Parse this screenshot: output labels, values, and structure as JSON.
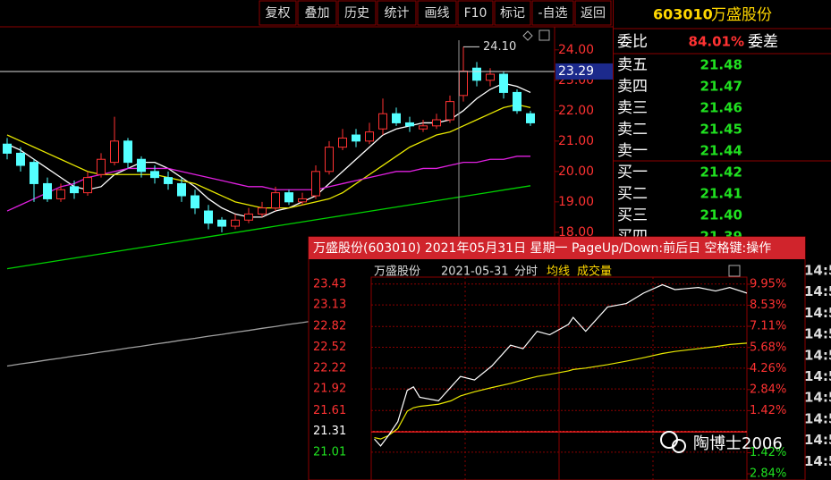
{
  "toolbar": [
    "复权",
    "叠加",
    "历史",
    "统计",
    "画线",
    "F10",
    "标记",
    "-自选",
    "返回"
  ],
  "stock": {
    "code": "603010",
    "name": "万盛股份"
  },
  "order_book": {
    "ratio_label": "委比",
    "ratio": "84.01%",
    "diff_label": "委差",
    "asks": [
      {
        "label": "卖五",
        "price": "21.48"
      },
      {
        "label": "卖四",
        "price": "21.47"
      },
      {
        "label": "卖三",
        "price": "21.46"
      },
      {
        "label": "卖二",
        "price": "21.45"
      },
      {
        "label": "卖一",
        "price": "21.44"
      }
    ],
    "bids": [
      {
        "label": "买一",
        "price": "21.42"
      },
      {
        "label": "买二",
        "price": "21.41"
      },
      {
        "label": "买三",
        "price": "21.40"
      },
      {
        "label": "买四",
        "price": "21.39"
      }
    ]
  },
  "kline": {
    "ylim": [
      9.85,
      24.7
    ],
    "yticks": [
      {
        "value": 24,
        "label": "24.00"
      },
      {
        "value": 23,
        "label": "23.00"
      },
      {
        "value": 22,
        "label": "22.00"
      },
      {
        "value": 21,
        "label": "21.00"
      },
      {
        "value": 20,
        "label": "20.00"
      },
      {
        "value": 19,
        "label": "19.00"
      },
      {
        "value": 18,
        "label": "18.00"
      }
    ],
    "current": {
      "value": 23.29,
      "label": "23.29"
    },
    "high_label": {
      "value": 24.1,
      "label": "24.10"
    },
    "open": [
      20.9,
      20.6,
      20.3,
      19.6,
      19.1,
      19.5,
      19.3,
      19.9,
      20.3,
      21.0,
      20.4,
      20.0,
      19.8,
      19.6,
      19.2,
      18.7,
      18.4,
      18.2,
      18.4,
      18.6,
      18.8,
      19.3,
      19.0,
      19.2,
      20.0,
      20.8,
      21.2,
      21.0,
      21.4,
      21.9,
      21.6,
      21.4,
      21.5,
      21.7,
      22.5,
      23.4,
      23.0,
      23.2,
      22.6,
      21.9
    ],
    "high": [
      21.1,
      20.8,
      20.4,
      19.8,
      19.6,
      19.7,
      20.0,
      20.6,
      21.8,
      21.1,
      20.5,
      20.2,
      20.0,
      19.8,
      19.4,
      18.9,
      18.5,
      18.6,
      18.8,
      19.0,
      19.5,
      19.4,
      19.3,
      20.2,
      21.0,
      21.4,
      21.4,
      21.6,
      22.4,
      22.1,
      21.8,
      21.7,
      21.9,
      22.5,
      24.1,
      23.6,
      23.4,
      23.3,
      22.7,
      22.0
    ],
    "low": [
      20.4,
      20.0,
      19.0,
      19.0,
      19.0,
      19.1,
      19.2,
      19.8,
      20.2,
      20.1,
      19.8,
      19.6,
      19.4,
      19.0,
      18.6,
      18.1,
      18.0,
      18.1,
      18.3,
      18.5,
      18.7,
      18.9,
      18.9,
      19.1,
      19.9,
      20.7,
      20.8,
      20.9,
      21.2,
      21.5,
      21.3,
      21.3,
      21.4,
      21.6,
      22.3,
      22.8,
      22.8,
      22.4,
      21.9,
      21.5
    ],
    "close": [
      20.6,
      20.2,
      19.6,
      19.1,
      19.4,
      19.3,
      19.8,
      20.4,
      21.0,
      20.3,
      20.0,
      19.8,
      19.6,
      19.2,
      18.8,
      18.3,
      18.2,
      18.4,
      18.6,
      18.8,
      19.3,
      19.0,
      19.1,
      20.0,
      20.8,
      21.1,
      21.0,
      21.3,
      21.9,
      21.6,
      21.5,
      21.5,
      21.7,
      22.3,
      23.3,
      23.0,
      23.2,
      22.6,
      22.0,
      21.6
    ],
    "up_color": "#ff3232",
    "down_color": "#54ffff",
    "ma": [
      {
        "color": "#ffffff",
        "values": [
          20.9,
          20.7,
          20.4,
          20.1,
          19.8,
          19.5,
          19.4,
          19.5,
          19.9,
          20.1,
          20.3,
          20.3,
          20.1,
          19.8,
          19.5,
          19.1,
          18.8,
          18.6,
          18.5,
          18.5,
          18.7,
          18.8,
          19.0,
          19.2,
          19.6,
          20.0,
          20.4,
          20.8,
          21.2,
          21.4,
          21.5,
          21.6,
          21.6,
          21.7,
          22.0,
          22.4,
          22.7,
          22.9,
          22.8,
          22.6
        ]
      },
      {
        "color": "#e8e800",
        "values": [
          21.2,
          21.0,
          20.8,
          20.6,
          20.4,
          20.2,
          20.0,
          19.9,
          19.9,
          19.9,
          19.9,
          19.9,
          19.8,
          19.7,
          19.6,
          19.4,
          19.2,
          19.0,
          18.9,
          18.8,
          18.8,
          18.8,
          18.9,
          19.0,
          19.1,
          19.3,
          19.6,
          19.9,
          20.2,
          20.5,
          20.8,
          21.0,
          21.2,
          21.3,
          21.5,
          21.7,
          21.9,
          22.1,
          22.2,
          22.1
        ]
      },
      {
        "color": "#e020e0",
        "values": [
          18.7,
          18.9,
          19.1,
          19.3,
          19.5,
          19.6,
          19.8,
          19.9,
          20.0,
          20.1,
          20.1,
          20.1,
          20.1,
          20.0,
          19.9,
          19.8,
          19.7,
          19.6,
          19.5,
          19.5,
          19.4,
          19.4,
          19.4,
          19.4,
          19.5,
          19.6,
          19.7,
          19.8,
          19.9,
          20.0,
          20.0,
          20.1,
          20.1,
          20.2,
          20.3,
          20.3,
          20.4,
          20.4,
          20.5,
          20.5
        ]
      },
      {
        "color": "#00d000",
        "values": [
          16.8,
          16.87,
          16.94,
          17.01,
          17.08,
          17.15,
          17.22,
          17.29,
          17.36,
          17.43,
          17.5,
          17.57,
          17.64,
          17.71,
          17.78,
          17.85,
          17.92,
          17.99,
          18.06,
          18.13,
          18.2,
          18.27,
          18.34,
          18.41,
          18.48,
          18.55,
          18.62,
          18.69,
          18.76,
          18.83,
          18.9,
          18.97,
          19.04,
          19.11,
          19.18,
          19.25,
          19.32,
          19.39,
          19.46,
          19.53
        ]
      },
      {
        "color": "#a0a0a0",
        "values": [
          13.6,
          13.67,
          13.73,
          13.8,
          13.86,
          13.93,
          13.99,
          14.06,
          14.12,
          14.19,
          14.25,
          14.32,
          14.38,
          14.45,
          14.51,
          14.58,
          14.64,
          14.71,
          14.77,
          14.84,
          14.9,
          14.97,
          15.03,
          15.1,
          15.16,
          15.23,
          15.29,
          15.36,
          15.42,
          15.49,
          15.55,
          15.62,
          15.68,
          15.75,
          15.81,
          15.88,
          15.94,
          16.01,
          16.07,
          16.14
        ]
      }
    ]
  },
  "intraday": {
    "title": "万盛股份(603010) 2021年05月31日 星期一 PageUp/Down:前后日 空格键:操作",
    "name": "万盛股份",
    "date": "2021-05-31",
    "mode": "分时",
    "avg_label": "均线",
    "volume_label": "成交量",
    "xlim": [
      0,
      240
    ],
    "ylim": [
      20.61,
      23.53
    ],
    "y2lim": [
      -3.26,
      10.43
    ],
    "yticks": [
      {
        "value": 23.43,
        "label": "23.43"
      },
      {
        "value": 23.13,
        "label": "23.13"
      },
      {
        "value": 22.82,
        "label": "22.82"
      },
      {
        "value": 22.52,
        "label": "22.52"
      },
      {
        "value": 22.22,
        "label": "22.22"
      },
      {
        "value": 21.92,
        "label": "21.92"
      },
      {
        "value": 21.61,
        "label": "21.61"
      },
      {
        "value": 21.31,
        "label": "21.31"
      },
      {
        "value": 21.01,
        "label": "21.01"
      }
    ],
    "y2ticks": [
      {
        "value": 9.95,
        "label": "9.95%"
      },
      {
        "value": 8.53,
        "label": "8.53%"
      },
      {
        "value": 7.11,
        "label": "7.11%"
      },
      {
        "value": 5.68,
        "label": "5.68%"
      },
      {
        "value": 4.26,
        "label": "4.26%"
      },
      {
        "value": 2.84,
        "label": "2.84%"
      },
      {
        "value": 1.42,
        "label": "1.42%"
      },
      {
        "value": -1.42,
        "label": "1.42%"
      },
      {
        "value": -2.84,
        "label": "2.84%"
      }
    ],
    "x": [
      2,
      6,
      11,
      17,
      23,
      27,
      31,
      43,
      51,
      57,
      66,
      77,
      89,
      97,
      106,
      114,
      126,
      129,
      137,
      151,
      163,
      174,
      186,
      194,
      209,
      220,
      229,
      240
    ],
    "price": [
      21.2,
      21.1,
      21.25,
      21.45,
      21.9,
      21.95,
      21.8,
      21.75,
      21.95,
      22.1,
      22.05,
      22.25,
      22.55,
      22.5,
      22.75,
      22.7,
      22.85,
      22.95,
      22.75,
      23.1,
      23.15,
      23.3,
      23.42,
      23.35,
      23.38,
      23.33,
      23.38,
      23.3
    ],
    "avg": [
      21.22,
      21.2,
      21.25,
      21.35,
      21.6,
      21.65,
      21.67,
      21.7,
      21.75,
      21.82,
      21.88,
      21.94,
      22.0,
      22.05,
      22.1,
      22.13,
      22.18,
      22.2,
      22.22,
      22.27,
      22.32,
      22.37,
      22.43,
      22.46,
      22.5,
      22.53,
      22.56,
      22.58
    ],
    "price_color": "#ffffff",
    "avg_color": "#e8e800"
  },
  "times": [
    "14:5",
    "14:5",
    "14:5",
    "14:5",
    "14:5",
    "14:5",
    "14:5",
    "14:5",
    "14:5",
    "14:5"
  ],
  "watermark": "陶博士2006"
}
